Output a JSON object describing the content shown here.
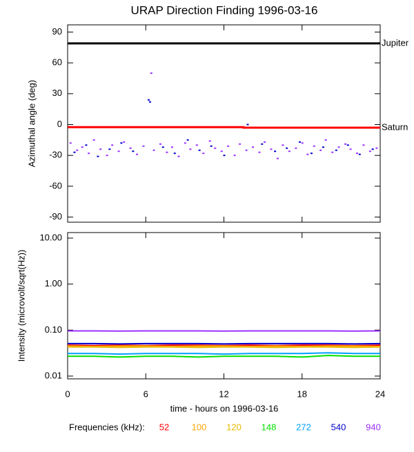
{
  "chart_data": [
    {
      "type": "scatter",
      "title": "URAP Direction Finding  1996-03-16",
      "y_label": "Azimuthal angle (deg)",
      "xlim": [
        0,
        24
      ],
      "ylim": [
        -95,
        97
      ],
      "yticks": [
        90,
        60,
        30,
        0,
        -30,
        -60,
        -90
      ],
      "reference_lines": [
        {
          "label": "Jupiter",
          "color": "#000000",
          "x": [
            0,
            24
          ],
          "values": [
            79,
            79
          ]
        },
        {
          "label": "Saturn",
          "color": "#ff0000",
          "x": [
            0,
            13.5,
            13.5,
            24
          ],
          "values": [
            -2.5,
            -2.5,
            -3,
            -3
          ]
        }
      ],
      "series": [
        {
          "name": "940",
          "color": "#9b30ff",
          "x": [
            0.2,
            0.7,
            1.1,
            1.6,
            2.0,
            2.5,
            3.0,
            3.4,
            3.9,
            4.3,
            4.8,
            5.3,
            5.8,
            6.4,
            6.6,
            7.1,
            7.6,
            8.0,
            8.5,
            9.0,
            9.4,
            9.9,
            10.4,
            10.9,
            11.3,
            11.8,
            12.3,
            12.8,
            13.2,
            13.7,
            14.2,
            14.7,
            15.1,
            15.6,
            16.1,
            16.5,
            17.0,
            17.5,
            18.0,
            18.4,
            18.9,
            19.4,
            19.8,
            20.3,
            20.8,
            21.3,
            21.7,
            22.2,
            22.7,
            23.2,
            23.7
          ],
          "values": [
            -18,
            -25,
            -22,
            -28,
            -15,
            -24,
            -30,
            -20,
            -26,
            -17,
            -23,
            -29,
            -21,
            50,
            -25,
            -19,
            -27,
            -22,
            -31,
            -18,
            -24,
            -20,
            -28,
            -16,
            -23,
            -26,
            -21,
            -30,
            -19,
            -25,
            -22,
            -27,
            -17,
            -24,
            -33,
            -20,
            -26,
            -23,
            -18,
            -29,
            -21,
            -25,
            -15,
            -27,
            -22,
            -19,
            -24,
            -28,
            -20,
            -26,
            -23
          ]
        },
        {
          "name": "540",
          "color": "#0000cc",
          "x": [
            0.5,
            1.4,
            2.3,
            3.2,
            4.1,
            5.0,
            6.2,
            6.3,
            7.3,
            8.2,
            9.2,
            10.1,
            11.0,
            12.0,
            13.8,
            14.9,
            15.9,
            16.8,
            17.8,
            18.7,
            19.6,
            20.6,
            21.5,
            22.4,
            23.4
          ],
          "values": [
            -27,
            -20,
            -31,
            -24,
            -18,
            -26,
            24,
            22,
            -22,
            -28,
            -15,
            -25,
            -21,
            -30,
            0,
            -19,
            -26,
            -23,
            -17,
            -28,
            -22,
            -25,
            -20,
            -29,
            -24
          ]
        }
      ]
    },
    {
      "type": "line",
      "y_label": "Intensity (microvolt/sqrt(Hz))",
      "x_label": "time - hours on 1996-03-16",
      "legend_title": "Frequencies (kHz):",
      "log_y": true,
      "xlim": [
        0,
        24
      ],
      "xticks": [
        0,
        6,
        12,
        18,
        24
      ],
      "ylim": [
        0.0087,
        13.2
      ],
      "yticks": [
        {
          "value": 10,
          "label": "10.00"
        },
        {
          "value": 1,
          "label": "1.00"
        },
        {
          "value": 0.1,
          "label": "0.10"
        },
        {
          "value": 0.01,
          "label": "0.01"
        }
      ],
      "x": [
        0,
        2,
        4,
        6,
        8,
        10,
        12,
        14,
        16,
        18,
        20,
        22,
        24
      ],
      "series": [
        {
          "name": "52",
          "color": "#ff0000",
          "values": [
            0.047,
            0.046,
            0.047,
            0.046,
            0.047,
            0.047,
            0.046,
            0.047,
            0.046,
            0.047,
            0.047,
            0.046,
            0.047
          ]
        },
        {
          "name": "100",
          "color": "#ffa500",
          "values": [
            0.045,
            0.044,
            0.045,
            0.045,
            0.044,
            0.045,
            0.045,
            0.044,
            0.045,
            0.044,
            0.045,
            0.045,
            0.044
          ]
        },
        {
          "name": "120",
          "color": "#e8b800",
          "values": [
            0.043,
            0.043,
            0.042,
            0.043,
            0.043,
            0.042,
            0.043,
            0.043,
            0.042,
            0.043,
            0.043,
            0.042,
            0.043
          ]
        },
        {
          "name": "148",
          "color": "#00e000",
          "values": [
            0.027,
            0.027,
            0.026,
            0.027,
            0.027,
            0.026,
            0.027,
            0.027,
            0.027,
            0.026,
            0.028,
            0.027,
            0.027
          ]
        },
        {
          "name": "272",
          "color": "#00a0ff",
          "values": [
            0.031,
            0.031,
            0.03,
            0.031,
            0.031,
            0.031,
            0.03,
            0.031,
            0.031,
            0.031,
            0.032,
            0.031,
            0.031
          ]
        },
        {
          "name": "540",
          "color": "#0000cc",
          "values": [
            0.051,
            0.051,
            0.05,
            0.051,
            0.051,
            0.051,
            0.05,
            0.051,
            0.051,
            0.051,
            0.051,
            0.05,
            0.051
          ]
        },
        {
          "name": "940",
          "color": "#9b30ff",
          "values": [
            0.096,
            0.096,
            0.095,
            0.096,
            0.096,
            0.096,
            0.095,
            0.096,
            0.096,
            0.096,
            0.096,
            0.095,
            0.096
          ]
        }
      ]
    }
  ]
}
